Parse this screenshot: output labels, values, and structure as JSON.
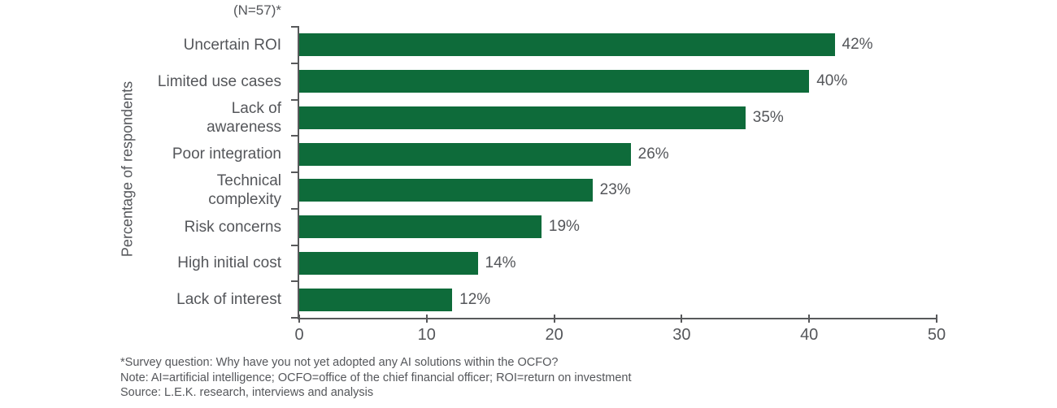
{
  "chart_data": {
    "type": "bar",
    "orientation": "horizontal",
    "sample_label": "(N=57)*",
    "ylabel": "Percentage of respondents",
    "xlabel": "",
    "categories": [
      "Uncertain ROI",
      "Limited use cases",
      "Lack of awareness",
      "Poor integration",
      "Technical complexity",
      "Risk concerns",
      "High initial cost",
      "Lack of interest"
    ],
    "categories_display": [
      "Uncertain ROI",
      "Limited use cases",
      "Lack of\nawareness",
      "Poor integration",
      "Technical\ncomplexity",
      "Risk concerns",
      "High initial cost",
      "Lack of interest"
    ],
    "values": [
      42,
      40,
      35,
      26,
      23,
      19,
      14,
      12
    ],
    "value_labels": [
      "42%",
      "40%",
      "35%",
      "26%",
      "23%",
      "19%",
      "14%",
      "12%"
    ],
    "xlim": [
      0,
      50
    ],
    "x_ticks": [
      0,
      10,
      20,
      30,
      40,
      50
    ],
    "x_tick_labels": [
      "0",
      "10",
      "20",
      "30",
      "40",
      "50"
    ],
    "bar_color": "#0e6b3a",
    "axis_color": "#58595b",
    "text_color": "#54565a",
    "grid": false,
    "legend": "none"
  },
  "footnotes": {
    "line1": "*Survey question: Why have you not yet adopted any AI solutions within the OCFO?",
    "line2": "Note: AI=artificial intelligence; OCFO=office of the chief financial officer; ROI=return on investment",
    "line3": "Source: L.E.K. research, interviews and analysis"
  }
}
